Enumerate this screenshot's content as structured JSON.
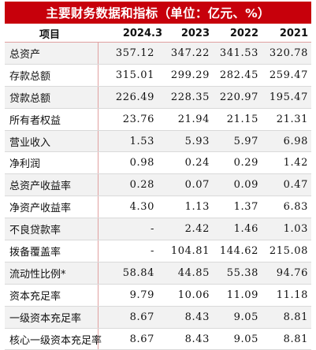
{
  "title": "主要财务数据和指标（单位：亿元、%）",
  "table": {
    "header": {
      "item": "项目",
      "years": [
        "2024.3",
        "2023",
        "2022",
        "2021"
      ]
    },
    "rows": [
      {
        "label": "总资产",
        "values": [
          "357.12",
          "347.22",
          "341.53",
          "320.78"
        ]
      },
      {
        "label": "存款总额",
        "values": [
          "315.01",
          "299.29",
          "282.45",
          "259.47"
        ]
      },
      {
        "label": "贷款总额",
        "values": [
          "226.49",
          "228.35",
          "220.97",
          "195.47"
        ]
      },
      {
        "label": "所有者权益",
        "values": [
          "23.76",
          "21.94",
          "21.15",
          "21.31"
        ]
      },
      {
        "label": "营业收入",
        "values": [
          "1.53",
          "5.93",
          "5.97",
          "6.98"
        ]
      },
      {
        "label": "净利润",
        "values": [
          "0.98",
          "0.24",
          "0.29",
          "1.42"
        ]
      },
      {
        "label": "总资产收益率",
        "values": [
          "0.28",
          "0.07",
          "0.09",
          "0.47"
        ]
      },
      {
        "label": "净资产收益率",
        "values": [
          "4.30",
          "1.13",
          "1.37",
          "6.83"
        ]
      },
      {
        "label": "不良贷款率",
        "values": [
          "-",
          "2.42",
          "1.46",
          "1.03"
        ]
      },
      {
        "label": "拨备覆盖率",
        "values": [
          "-",
          "104.81",
          "144.62",
          "215.08"
        ]
      },
      {
        "label": "流动性比例*",
        "values": [
          "58.84",
          "44.85",
          "55.38",
          "94.76"
        ]
      },
      {
        "label": "资本充足率",
        "values": [
          "9.79",
          "10.06",
          "11.09",
          "11.18"
        ]
      },
      {
        "label": "一级资本充足率",
        "values": [
          "8.67",
          "8.43",
          "9.05",
          "8.81"
        ]
      },
      {
        "label": "核心一级资本充足率",
        "values": [
          "8.67",
          "8.43",
          "9.05",
          "8.81"
        ]
      }
    ]
  }
}
